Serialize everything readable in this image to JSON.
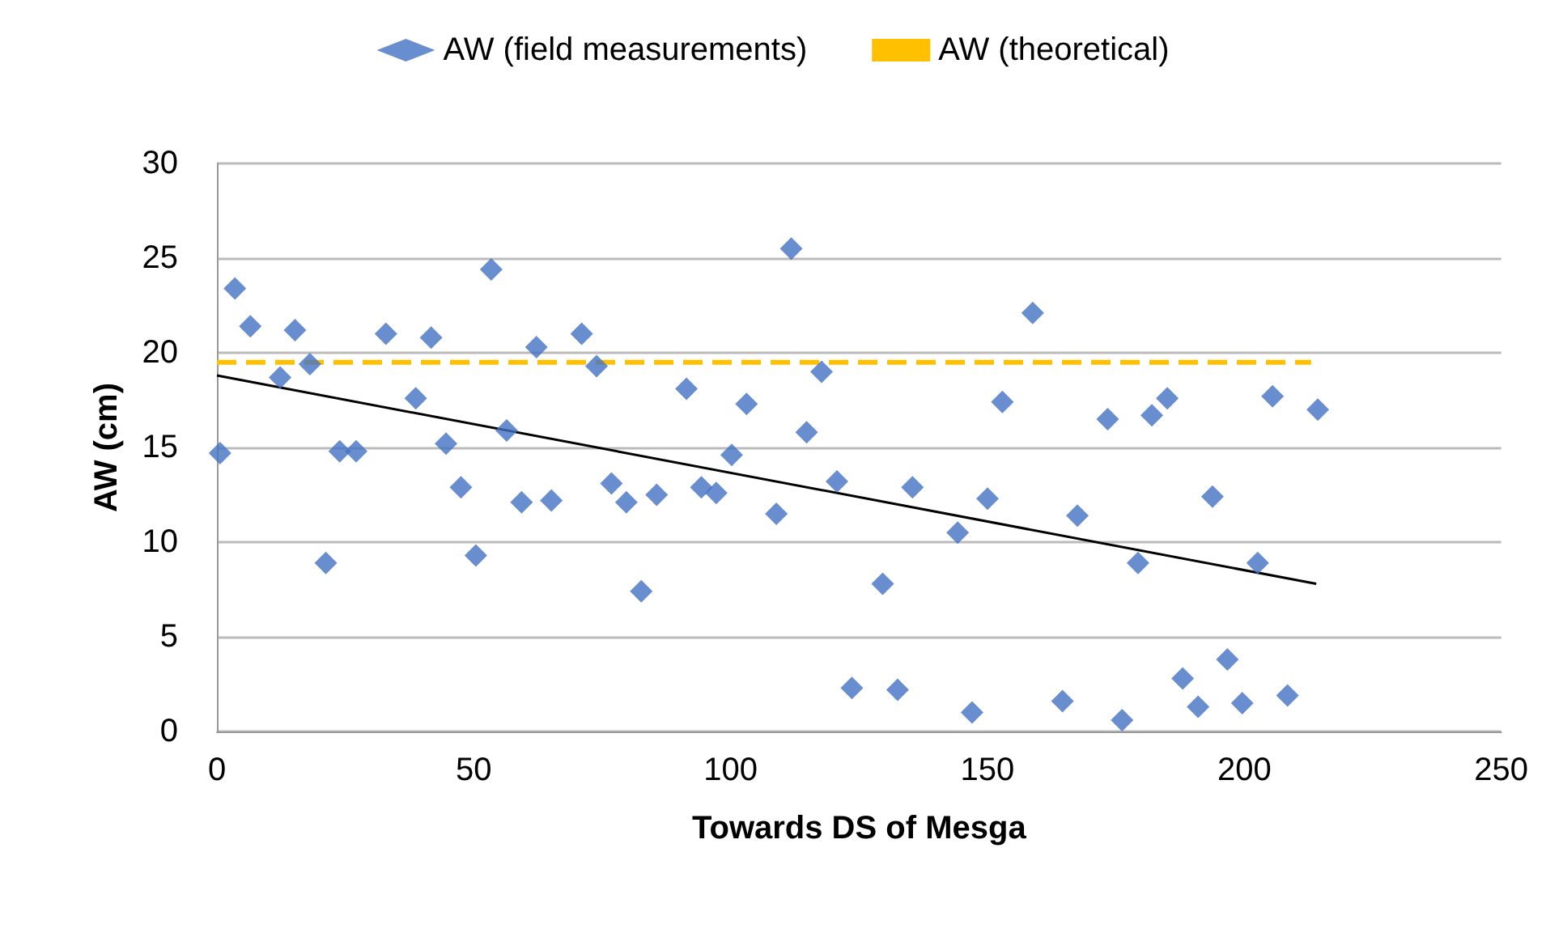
{
  "chart_data": {
    "type": "scatter",
    "xlabel": "Towards DS of Mesga",
    "ylabel": "AW (cm)",
    "xlim": [
      0,
      250
    ],
    "xticks": [
      0,
      50,
      100,
      150,
      200,
      250
    ],
    "ylim": [
      0,
      30
    ],
    "yticks": [
      0,
      5,
      10,
      15,
      20,
      25,
      30
    ],
    "grid": "y",
    "legend": "top",
    "marker": "diamond",
    "series": [
      {
        "name": "AW (field measurements)",
        "color": "#4472c4",
        "x": [
          0.6,
          3.5,
          6.5,
          12.3,
          15.2,
          18.1,
          21.2,
          23.9,
          27.1,
          32.9,
          38.7,
          41.7,
          44.6,
          47.5,
          50.4,
          53.4,
          56.4,
          59.3,
          62.2,
          65.1,
          71,
          73.9,
          76.8,
          79.7,
          82.6,
          85.6,
          91.4,
          94.3,
          97.2,
          100.2,
          103.1,
          108.9,
          111.8,
          114.8,
          117.7,
          120.7,
          123.6,
          129.6,
          132.5,
          135.4,
          144.2,
          147,
          150,
          152.9,
          158.8,
          164.6,
          167.5,
          173.4,
          176.2,
          179.3,
          182,
          185,
          188,
          191,
          193.8,
          196.7,
          199.6,
          202.6,
          205.5,
          208.4,
          214.3
        ],
        "values": [
          14.7,
          23.4,
          21.4,
          18.7,
          21.2,
          19.4,
          8.9,
          14.8,
          14.8,
          21,
          17.6,
          20.8,
          15.2,
          12.9,
          9.3,
          24.4,
          15.9,
          12.1,
          20.3,
          12.2,
          21,
          19.3,
          13.1,
          12.1,
          7.4,
          12.5,
          18.1,
          12.9,
          12.6,
          14.6,
          17.3,
          11.5,
          25.5,
          15.8,
          19,
          13.2,
          2.3,
          7.8,
          2.2,
          12.9,
          10.5,
          1,
          12.3,
          17.4,
          22.1,
          1.6,
          11.4,
          16.5,
          0.6,
          8.9,
          16.7,
          17.6,
          2.8,
          1.3,
          12.4,
          3.8,
          1.5,
          8.9,
          17.7,
          1.9,
          17
        ]
      },
      {
        "name": "AW (theoretical)",
        "color": "#ffc000",
        "type": "line",
        "line_style": "dashed",
        "marker": "none",
        "x": [
          0,
          213
        ],
        "values": [
          19.5,
          19.5
        ]
      },
      {
        "color": "#000000",
        "type": "line",
        "line_style": "solid",
        "marker": "none",
        "x": [
          0,
          214
        ],
        "values": [
          18.8,
          7.8
        ]
      }
    ]
  }
}
